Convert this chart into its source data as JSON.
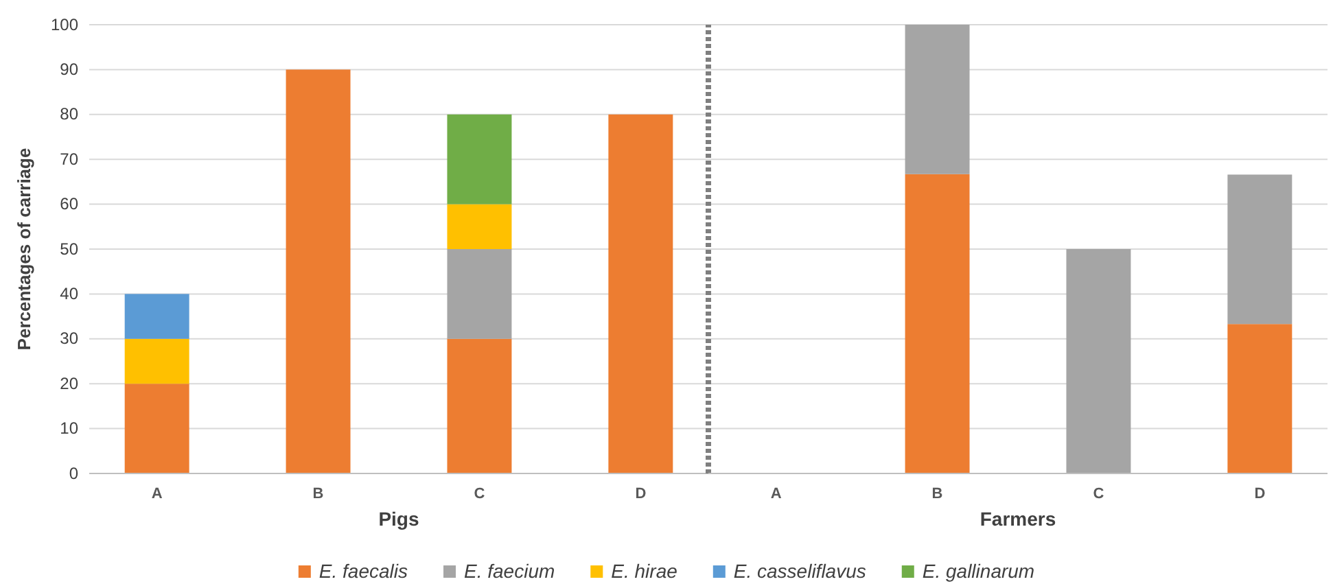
{
  "chart_data": [
    {
      "type": "bar",
      "stacked": true,
      "ylabel": "Percentages of carriage",
      "xlabel": "Pigs",
      "categories": [
        "A",
        "B",
        "C",
        "D"
      ],
      "series": [
        {
          "name": "E. faecalis",
          "color": "#ed7d31",
          "values": [
            20,
            90,
            30,
            80
          ]
        },
        {
          "name": "E. faecium",
          "color": "#a5a5a5",
          "values": [
            0,
            0,
            20,
            0
          ]
        },
        {
          "name": "E. hirae",
          "color": "#ffc000",
          "values": [
            10,
            0,
            10,
            0
          ]
        },
        {
          "name": "E. casseliflavus",
          "color": "#5b9bd5",
          "values": [
            10,
            0,
            0,
            0
          ]
        },
        {
          "name": "E. gallinarum",
          "color": "#70ad47",
          "values": [
            0,
            0,
            20,
            0
          ]
        }
      ],
      "ylim": [
        0,
        100
      ],
      "yticks": [
        0,
        10,
        20,
        30,
        40,
        50,
        60,
        70,
        80,
        90,
        100
      ],
      "grid": "y",
      "legend": "bottom"
    },
    {
      "type": "bar",
      "stacked": true,
      "xlabel": "Farmers",
      "categories": [
        "A",
        "B",
        "C",
        "D"
      ],
      "series": [
        {
          "color": "#ed7d31",
          "values": [
            0,
            66.7,
            0,
            33.3
          ]
        },
        {
          "color": "#a5a5a5",
          "values": [
            0,
            33.3,
            50,
            33.3
          ]
        }
      ],
      "ylim": [
        0,
        100
      ],
      "yticks": [
        0,
        10,
        20,
        30,
        40,
        50,
        60,
        70,
        80,
        90,
        100
      ],
      "grid": "y",
      "tick_labels": "x"
    }
  ]
}
